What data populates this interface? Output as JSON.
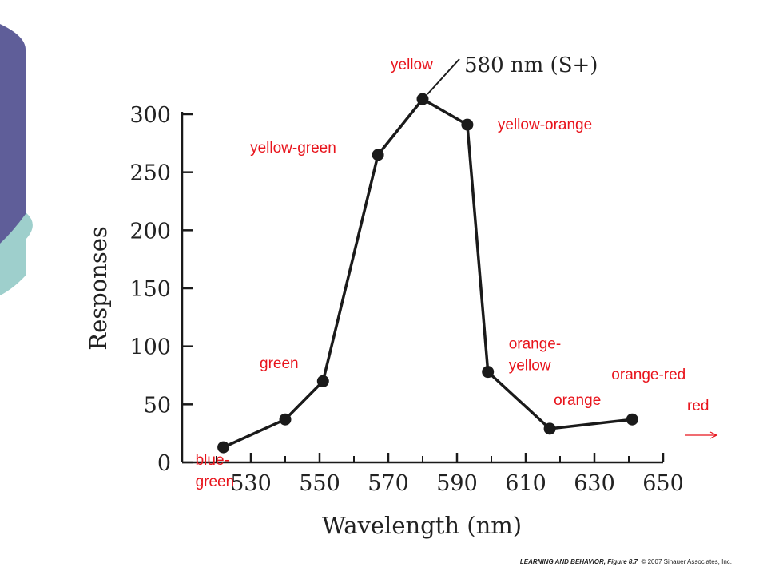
{
  "theme": {
    "accent_purple": "#5f5e99",
    "accent_teal": "#9ecfcc",
    "label_color": "#e8141c",
    "line_color": "#1a1a1a"
  },
  "chart_data": {
    "type": "line",
    "title": "",
    "xlabel": "Wavelength (nm)",
    "ylabel": "Responses",
    "xlim": [
      510,
      650
    ],
    "ylim": [
      0,
      300
    ],
    "xticks": [
      530,
      550,
      570,
      590,
      610,
      630,
      650
    ],
    "yticks": [
      0,
      50,
      100,
      150,
      200,
      250,
      300
    ],
    "grid": false,
    "annotation": "580 nm (S+)",
    "series": [
      {
        "x": [
          522,
          540,
          551,
          567,
          580,
          593,
          599,
          617,
          641
        ],
        "y": [
          13,
          37,
          70,
          265,
          313,
          291,
          78,
          29,
          37
        ]
      }
    ],
    "color_labels": [
      {
        "text": "blue-\ngreen",
        "x": 522,
        "y": 13
      },
      {
        "text": "green",
        "x": 540,
        "y": 37
      },
      {
        "text": "yellow-green",
        "x": 567,
        "y": 265
      },
      {
        "text": "yellow",
        "x": 580,
        "y": 313
      },
      {
        "text": "yellow-orange",
        "x": 593,
        "y": 291
      },
      {
        "text": "orange-\nyellow",
        "x": 599,
        "y": 78
      },
      {
        "text": "orange",
        "x": 617,
        "y": 29
      },
      {
        "text": "orange-red",
        "x": 641,
        "y": 37
      },
      {
        "text": "red",
        "x": 650,
        "y": 37
      }
    ]
  },
  "footer": {
    "book_title": "LEARNING AND BEHAVIOR, Figure 8.7",
    "copyright": "© 2007 Sinauer Associates, Inc."
  }
}
